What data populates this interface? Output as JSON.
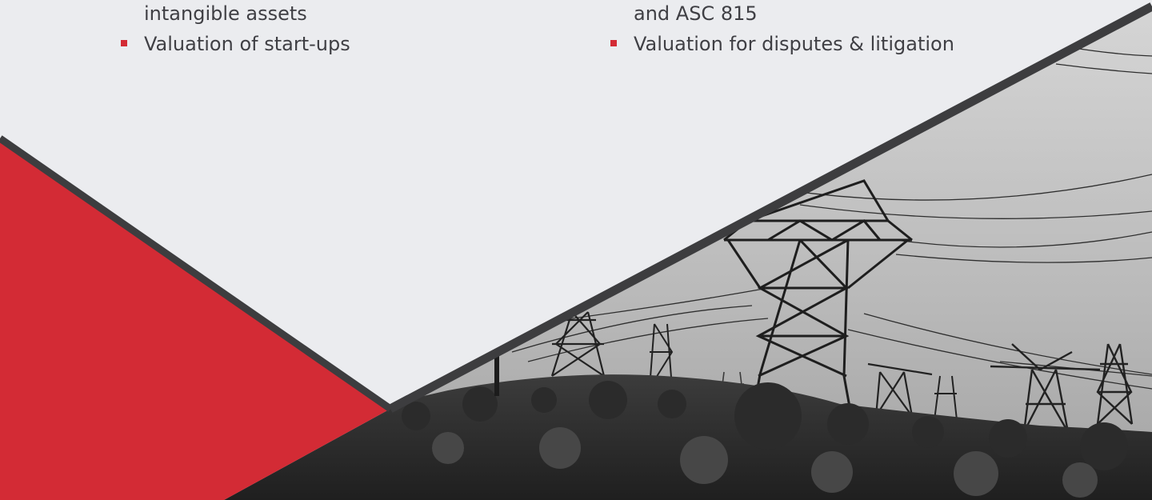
{
  "theme": {
    "background": "#ebecef",
    "accent_red": "#d32b35",
    "divider": "#3d3d3f",
    "text": "#3f3f44"
  },
  "left_column": {
    "continued_line": "intangible assets",
    "items": [
      {
        "label": "Valuation of start-ups"
      }
    ]
  },
  "right_column": {
    "continued_line": "and ASC 815",
    "items": [
      {
        "label": "Valuation for disputes & litigation"
      }
    ]
  },
  "photo": {
    "subject": "grayscale photo of electricity transmission towers and power lines over a brushy hillside"
  }
}
